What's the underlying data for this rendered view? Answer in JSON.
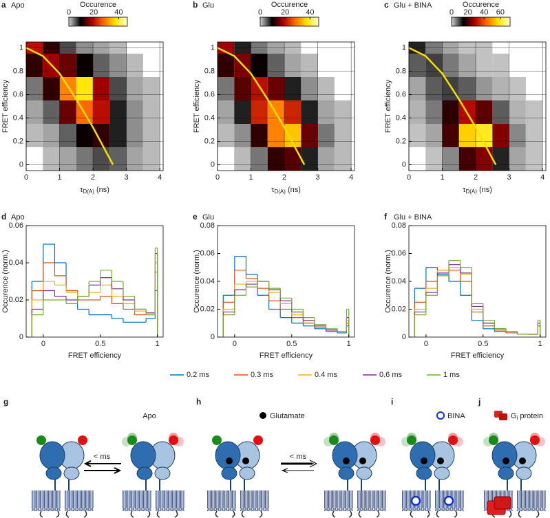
{
  "chart_data": [
    {
      "type": "heatmap",
      "panel": "a",
      "title": "Apo",
      "colorbar_label": "Occurence",
      "clim": [
        0,
        47
      ],
      "cticks": [
        0,
        20,
        40
      ],
      "colormap": [
        "#d0d0d0",
        "#000000",
        "#b00000",
        "#ff6a00",
        "#ffe600",
        "#ffffd0"
      ],
      "x_label": {
        "main": "τ",
        "sub": "D(A)",
        "unit": " (ns)"
      },
      "y_label": "FRET efficiency",
      "xlim": [
        0,
        4.1
      ],
      "xticks": [
        0,
        1,
        2,
        3,
        4
      ],
      "ylim": [
        -0.05,
        1.05
      ],
      "yticks": [
        0,
        0.2,
        0.4,
        0.6,
        0.8,
        1
      ],
      "grid": true,
      "xbins": [
        0,
        0.5,
        1,
        1.5,
        2,
        2.5,
        3,
        3.5,
        4
      ],
      "ybins": [
        -0.05,
        0.15,
        0.35,
        0.55,
        0.75,
        0.95,
        1.05
      ],
      "z": [
        [
          0,
          1,
          2,
          4,
          6,
          5,
          2,
          1
        ],
        [
          1,
          2,
          5,
          10,
          12,
          8,
          3,
          1
        ],
        [
          2,
          5,
          15,
          28,
          20,
          8,
          3,
          1
        ],
        [
          4,
          12,
          30,
          38,
          18,
          6,
          2,
          1
        ],
        [
          12,
          18,
          15,
          10,
          5,
          3,
          1,
          0
        ],
        [
          20,
          12,
          6,
          3,
          2,
          1,
          0,
          0
        ]
      ],
      "fit": {
        "color": "#f5e000",
        "x": [
          0,
          0.5,
          1,
          1.5,
          2,
          2.3,
          2.6
        ],
        "y": [
          1,
          0.93,
          0.78,
          0.56,
          0.32,
          0.16,
          0
        ]
      }
    },
    {
      "type": "heatmap",
      "panel": "b",
      "title": "Glu",
      "colorbar_label": "Occurence",
      "clim": [
        0,
        47
      ],
      "cticks": [
        0,
        20,
        40
      ],
      "colormap": [
        "#d0d0d0",
        "#000000",
        "#b00000",
        "#ff6a00",
        "#ffe600",
        "#ffffd0"
      ],
      "x_label": {
        "main": "τ",
        "sub": "D(A)",
        "unit": " (ns)"
      },
      "y_label": "FRET efficiency",
      "xlim": [
        0,
        4.1
      ],
      "xticks": [
        0,
        1,
        2,
        3,
        4
      ],
      "ylim": [
        -0.05,
        1.05
      ],
      "yticks": [
        0,
        0.2,
        0.4,
        0.6,
        0.8,
        1
      ],
      "grid": true,
      "xbins": [
        0,
        0.5,
        1,
        1.5,
        2,
        2.5,
        3,
        3.5,
        4
      ],
      "ybins": [
        -0.05,
        0.15,
        0.35,
        0.55,
        0.75,
        0.95,
        1.05
      ],
      "z": [
        [
          0,
          1,
          4,
          12,
          14,
          8,
          2,
          1
        ],
        [
          1,
          3,
          12,
          30,
          35,
          15,
          4,
          1
        ],
        [
          2,
          8,
          22,
          30,
          22,
          8,
          2,
          1
        ],
        [
          4,
          14,
          20,
          15,
          8,
          3,
          1,
          0
        ],
        [
          12,
          16,
          10,
          5,
          2,
          1,
          0,
          0
        ],
        [
          18,
          8,
          4,
          2,
          1,
          0,
          0,
          0
        ]
      ],
      "fit": {
        "color": "#f5e000",
        "x": [
          0,
          0.5,
          1,
          1.5,
          2,
          2.3,
          2.6
        ],
        "y": [
          1,
          0.93,
          0.78,
          0.56,
          0.32,
          0.16,
          0
        ]
      }
    },
    {
      "type": "heatmap",
      "panel": "c",
      "title": "Glu + BINA",
      "colorbar_label": "Occurence",
      "clim": [
        0,
        72
      ],
      "cticks": [
        0,
        20,
        40,
        60
      ],
      "colormap": [
        "#d0d0d0",
        "#000000",
        "#b00000",
        "#ff6a00",
        "#ffe600",
        "#ffffd0"
      ],
      "x_label": {
        "main": "τ",
        "sub": "D(A)",
        "unit": " (ns)"
      },
      "y_label": "FRET efficiency",
      "xlim": [
        0,
        4.1
      ],
      "xticks": [
        0,
        1,
        2,
        3,
        4
      ],
      "ylim": [
        -0.05,
        1.05
      ],
      "yticks": [
        0,
        0.2,
        0.4,
        0.6,
        0.8,
        1
      ],
      "grid": true,
      "xbins": [
        0,
        0.5,
        1,
        1.5,
        2,
        2.5,
        3,
        3.5,
        4
      ],
      "ybins": [
        -0.05,
        0.15,
        0.35,
        0.55,
        0.75,
        0.95,
        1.05
      ],
      "z": [
        [
          0,
          1,
          5,
          20,
          25,
          12,
          3,
          1
        ],
        [
          1,
          3,
          20,
          55,
          60,
          25,
          5,
          1
        ],
        [
          2,
          6,
          18,
          30,
          22,
          8,
          2,
          1
        ],
        [
          3,
          8,
          10,
          8,
          4,
          2,
          1,
          0
        ],
        [
          8,
          10,
          6,
          3,
          1,
          1,
          0,
          0
        ],
        [
          12,
          6,
          3,
          1,
          1,
          0,
          0,
          0
        ]
      ],
      "fit": {
        "color": "#f5e000",
        "x": [
          0,
          0.5,
          1,
          1.5,
          2,
          2.3,
          2.6
        ],
        "y": [
          1,
          0.93,
          0.78,
          0.56,
          0.32,
          0.16,
          0
        ]
      }
    },
    {
      "type": "histogram",
      "panel": "d",
      "title": "Apo",
      "x_label": "FRET efficiency",
      "y_label": "Occurence (norm.)",
      "xlim": [
        -0.15,
        1.05
      ],
      "xticks": [
        0,
        0.5,
        1
      ],
      "ylim": [
        0,
        0.06
      ],
      "yticks": [
        0,
        0.02,
        0.04,
        0.06
      ],
      "grid": false,
      "bins": [
        -0.1,
        0,
        0.1,
        0.2,
        0.3,
        0.4,
        0.5,
        0.6,
        0.7,
        0.8,
        0.9,
        0.98,
        1.0
      ],
      "series": [
        {
          "color": "#0072bd",
          "values": [
            0.03,
            0.05,
            0.04,
            0.025,
            0.015,
            0.012,
            0.012,
            0.01,
            0.008,
            0.008,
            0.01,
            0.025
          ]
        },
        {
          "color": "#d95319",
          "values": [
            0.025,
            0.04,
            0.033,
            0.025,
            0.02,
            0.02,
            0.022,
            0.018,
            0.015,
            0.012,
            0.012,
            0.035
          ]
        },
        {
          "color": "#edb120",
          "values": [
            0.02,
            0.03,
            0.028,
            0.024,
            0.022,
            0.024,
            0.028,
            0.022,
            0.018,
            0.014,
            0.013,
            0.04
          ]
        },
        {
          "color": "#7e2f8e",
          "values": [
            0.015,
            0.025,
            0.022,
            0.02,
            0.022,
            0.028,
            0.032,
            0.026,
            0.02,
            0.015,
            0.013,
            0.045
          ]
        },
        {
          "color": "#77ac30",
          "values": [
            0.012,
            0.02,
            0.02,
            0.018,
            0.022,
            0.03,
            0.036,
            0.03,
            0.022,
            0.015,
            0.012,
            0.048
          ]
        }
      ]
    },
    {
      "type": "histogram",
      "panel": "e",
      "title": "Glu",
      "x_label": "FRET efficiency",
      "y_label": "Occurence (norm.)",
      "xlim": [
        -0.15,
        1.05
      ],
      "xticks": [
        0,
        0.5,
        1
      ],
      "ylim": [
        0,
        0.08
      ],
      "yticks": [
        0,
        0.02,
        0.04,
        0.06,
        0.08
      ],
      "grid": false,
      "bins": [
        -0.1,
        0,
        0.1,
        0.2,
        0.3,
        0.4,
        0.5,
        0.6,
        0.7,
        0.8,
        0.9,
        0.98,
        1.0
      ],
      "series": [
        {
          "color": "#0072bd",
          "values": [
            0.03,
            0.058,
            0.045,
            0.03,
            0.02,
            0.014,
            0.01,
            0.008,
            0.006,
            0.004,
            0.003,
            0.008
          ]
        },
        {
          "color": "#d95319",
          "values": [
            0.025,
            0.048,
            0.042,
            0.035,
            0.026,
            0.02,
            0.014,
            0.01,
            0.007,
            0.005,
            0.004,
            0.01
          ]
        },
        {
          "color": "#edb120",
          "values": [
            0.02,
            0.038,
            0.04,
            0.04,
            0.032,
            0.024,
            0.016,
            0.012,
            0.008,
            0.005,
            0.004,
            0.012
          ]
        },
        {
          "color": "#7e2f8e",
          "values": [
            0.018,
            0.034,
            0.038,
            0.04,
            0.034,
            0.026,
            0.018,
            0.012,
            0.008,
            0.005,
            0.004,
            0.014
          ]
        },
        {
          "color": "#77ac30",
          "values": [
            0.016,
            0.03,
            0.036,
            0.04,
            0.035,
            0.028,
            0.02,
            0.014,
            0.009,
            0.006,
            0.004,
            0.02
          ]
        }
      ]
    },
    {
      "type": "histogram",
      "panel": "f",
      "title": "Glu + BINA",
      "x_label": "FRET efficiency",
      "y_label": "Occurence (norm.)",
      "xlim": [
        -0.15,
        1.05
      ],
      "xticks": [
        0,
        0.5,
        1
      ],
      "ylim": [
        0,
        0.08
      ],
      "yticks": [
        0,
        0.02,
        0.04,
        0.06,
        0.08
      ],
      "grid": false,
      "bins": [
        -0.1,
        0,
        0.1,
        0.2,
        0.3,
        0.4,
        0.5,
        0.6,
        0.7,
        0.8,
        0.9,
        0.98,
        1.0
      ],
      "series": [
        {
          "color": "#0072bd",
          "values": [
            0.035,
            0.05,
            0.045,
            0.04,
            0.03,
            0.012,
            0.006,
            0.004,
            0.003,
            0.002,
            0.002,
            0.008
          ]
        },
        {
          "color": "#d95319",
          "values": [
            0.025,
            0.04,
            0.048,
            0.048,
            0.04,
            0.018,
            0.008,
            0.005,
            0.003,
            0.002,
            0.002,
            0.008
          ]
        },
        {
          "color": "#edb120",
          "values": [
            0.02,
            0.035,
            0.048,
            0.05,
            0.045,
            0.02,
            0.01,
            0.006,
            0.004,
            0.002,
            0.002,
            0.01
          ]
        },
        {
          "color": "#7e2f8e",
          "values": [
            0.018,
            0.032,
            0.046,
            0.052,
            0.046,
            0.022,
            0.01,
            0.006,
            0.004,
            0.002,
            0.002,
            0.01
          ]
        },
        {
          "color": "#77ac30",
          "values": [
            0.016,
            0.03,
            0.044,
            0.055,
            0.05,
            0.024,
            0.012,
            0.006,
            0.004,
            0.002,
            0.002,
            0.012
          ]
        }
      ]
    }
  ],
  "legend": [
    "0.2 ms",
    "0.3 ms",
    "0.4 ms",
    "0.6 ms",
    "1 ms"
  ],
  "diagram": {
    "g": {
      "letter": "g",
      "state": "Apo",
      "rate": "< ms"
    },
    "h": {
      "letter": "h",
      "ligand": "Glutamate",
      "rate": "< ms"
    },
    "i": {
      "letter": "i",
      "ligand": "BINA"
    },
    "j": {
      "letter": "j",
      "ligand": "G",
      "ligand_sub": "i",
      "ligand_rest": " protein"
    }
  }
}
